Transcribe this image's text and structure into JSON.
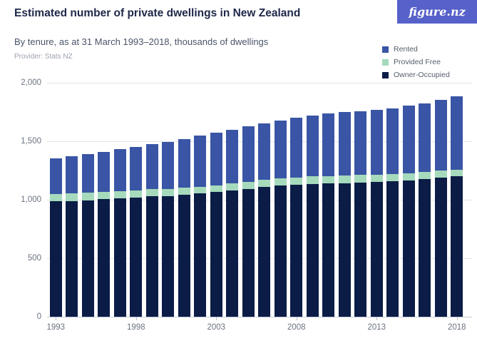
{
  "header": {
    "title": "Estimated number of private dwellings in New Zealand",
    "subtitle": "By tenure, as at 31 March 1993–2018, thousands of dwellings",
    "provider": "Provider: Stats NZ"
  },
  "logo": {
    "text": "figure.nz",
    "bg_color": "#5661C9",
    "text_color": "#FFFFFF"
  },
  "legend": {
    "position": "top-right",
    "items": [
      {
        "label": "Rented",
        "color": "#3A55A5"
      },
      {
        "label": "Provided Free",
        "color": "#A5DABC"
      },
      {
        "label": "Owner-Occupied",
        "color": "#0B1C47"
      }
    ]
  },
  "chart_data": {
    "type": "bar",
    "stacked": true,
    "title": "Estimated number of private dwellings in New Zealand",
    "subtitle": "By tenure, as at 31 March 1993–2018, thousands of dwellings",
    "xlabel": "",
    "ylabel": "thousands of dwellings",
    "ylim": [
      0,
      2000
    ],
    "grid": true,
    "legend_position": "top-right",
    "y_ticks": [
      {
        "value": 0,
        "label": "0"
      },
      {
        "value": 500,
        "label": "500"
      },
      {
        "value": 1000,
        "label": "1,000"
      },
      {
        "value": 1500,
        "label": "1,500"
      },
      {
        "value": 2000,
        "label": "2,000"
      }
    ],
    "x_tick_labels": [
      "1993",
      "1998",
      "2003",
      "2008",
      "2013",
      "2018"
    ],
    "categories": [
      1993,
      1994,
      1995,
      1996,
      1997,
      1998,
      1999,
      2000,
      2001,
      2002,
      2003,
      2004,
      2005,
      2006,
      2007,
      2008,
      2009,
      2010,
      2011,
      2012,
      2013,
      2014,
      2015,
      2016,
      2017,
      2018
    ],
    "series": [
      {
        "name": "Owner-Occupied",
        "color": "#0B1C47",
        "values": [
          985,
          990,
          996,
          1005,
          1010,
          1020,
          1029,
          1032,
          1045,
          1053,
          1065,
          1081,
          1094,
          1110,
          1122,
          1130,
          1134,
          1138,
          1142,
          1146,
          1150,
          1159,
          1167,
          1175,
          1187,
          1199
        ]
      },
      {
        "name": "Provided Free",
        "color": "#A5DABC",
        "values": [
          65,
          65,
          63,
          64,
          63,
          61,
          61,
          62,
          57,
          57,
          57,
          57,
          60,
          61,
          61,
          61,
          65,
          65,
          65,
          65,
          65,
          61,
          61,
          61,
          61,
          57
        ]
      },
      {
        "name": "Rented",
        "color": "#3A55A5",
        "values": [
          301,
          315,
          331,
          339,
          357,
          371,
          385,
          403,
          418,
          438,
          451,
          462,
          476,
          481,
          492,
          509,
          519,
          533,
          543,
          547,
          553,
          563,
          575,
          587,
          607,
          629
        ]
      }
    ]
  }
}
